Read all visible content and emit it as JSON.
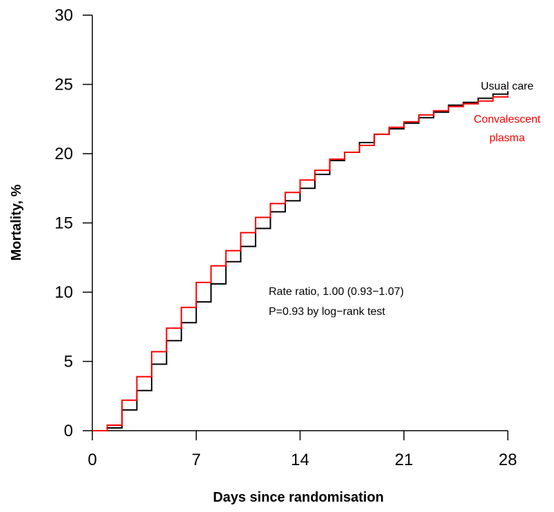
{
  "chart_data": {
    "type": "line",
    "step": true,
    "xlabel": "Days since randomisation",
    "ylabel": "Mortality, %",
    "xlim": [
      0,
      28
    ],
    "ylim": [
      0,
      30
    ],
    "xticks": [
      0,
      7,
      14,
      21,
      28
    ],
    "yticks": [
      0,
      5,
      10,
      15,
      20,
      25,
      30
    ],
    "grid": false,
    "series": [
      {
        "name": "Usual care",
        "color": "#000000",
        "x": [
          0,
          1,
          2,
          3,
          4,
          5,
          6,
          7,
          8,
          9,
          10,
          11,
          12,
          13,
          14,
          15,
          16,
          17,
          18,
          19,
          20,
          21,
          22,
          23,
          24,
          25,
          26,
          27,
          28
        ],
        "y": [
          0,
          0.2,
          1.5,
          2.9,
          4.8,
          6.5,
          7.8,
          9.3,
          10.6,
          12.2,
          13.3,
          14.6,
          15.8,
          16.6,
          17.5,
          18.5,
          19.5,
          20.1,
          20.8,
          21.4,
          21.8,
          22.2,
          22.6,
          23.0,
          23.5,
          23.7,
          24.0,
          24.3,
          24.5
        ]
      },
      {
        "name": "Convalescent plasma",
        "color": "#ff0000",
        "x": [
          0,
          1,
          2,
          3,
          4,
          5,
          6,
          7,
          8,
          9,
          10,
          11,
          12,
          13,
          14,
          15,
          16,
          17,
          18,
          19,
          20,
          21,
          22,
          23,
          24,
          25,
          26,
          27,
          28
        ],
        "y": [
          0,
          0.4,
          2.2,
          3.9,
          5.7,
          7.4,
          8.9,
          10.7,
          11.9,
          13.0,
          14.3,
          15.4,
          16.4,
          17.2,
          18.1,
          18.8,
          19.6,
          20.1,
          20.6,
          21.4,
          21.9,
          22.3,
          22.8,
          23.1,
          23.4,
          23.6,
          23.8,
          24.1,
          24.2
        ]
      }
    ],
    "series_labels": [
      {
        "lines": [
          "Usual care"
        ],
        "color": "#000000"
      },
      {
        "lines": [
          "Convalescent",
          "plasma"
        ],
        "color": "#ff0000"
      }
    ],
    "annotations": [
      "Rate ratio, 1.00 (0.93−1.07)",
      "P=0.93 by log−rank test"
    ]
  }
}
